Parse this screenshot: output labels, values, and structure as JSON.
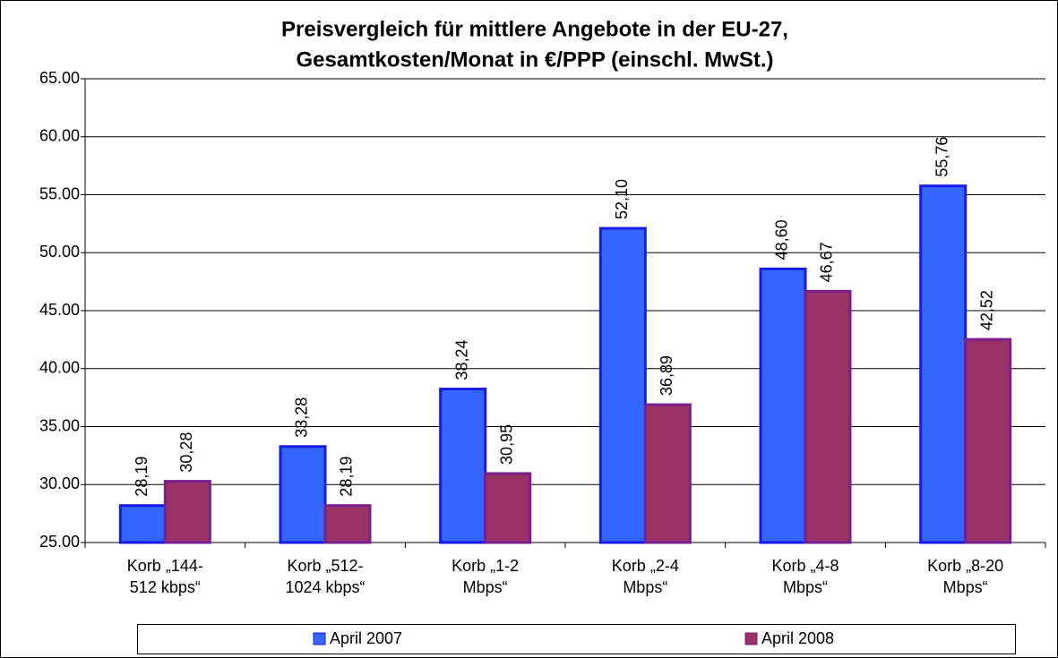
{
  "chart_data": {
    "type": "bar",
    "title": "Preisvergleich für mittlere Angebote in der EU-27,",
    "subtitle": "Gesamtkosten/Monat in €/PPP (einschl. MwSt.)",
    "categories": [
      "Korb „144-\n512 kbps“",
      "Korb „512-\n1024 kbps“",
      "Korb „1-2\nMbps“",
      "Korb „2-4\nMbps“",
      "Korb „4-8\nMbps“",
      "Korb „8-20\nMbps“"
    ],
    "series": [
      {
        "name": "April 2007",
        "color": "#3366ff",
        "border": "#1a1ae6",
        "values": [
          28.19,
          33.28,
          38.24,
          52.1,
          48.6,
          55.76
        ],
        "value_labels": [
          "28,19",
          "33,28",
          "38,24",
          "52,10",
          "48,60",
          "55,76"
        ]
      },
      {
        "name": "April 2008",
        "color": "#993366",
        "border": "#7a1f8f",
        "values": [
          30.28,
          28.19,
          30.95,
          36.89,
          46.67,
          42.52
        ],
        "value_labels": [
          "30,28",
          "28,19",
          "30,95",
          "36,89",
          "46,67",
          "42,52"
        ]
      }
    ],
    "ylim": [
      25,
      65
    ],
    "yticks": [
      {
        "value": 25,
        "label": "25.00"
      },
      {
        "value": 30,
        "label": "30.00"
      },
      {
        "value": 35,
        "label": "35.00"
      },
      {
        "value": 40,
        "label": "40.00"
      },
      {
        "value": 45,
        "label": "45.00"
      },
      {
        "value": 50,
        "label": "50.00"
      },
      {
        "value": 55,
        "label": "55.00"
      },
      {
        "value": 60,
        "label": "60.00"
      },
      {
        "value": 65,
        "label": "65.00"
      }
    ],
    "grid": true,
    "legend": "bottom"
  }
}
